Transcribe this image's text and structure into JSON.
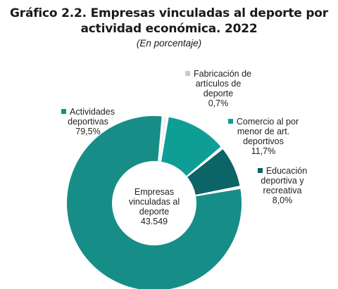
{
  "chart_data": {
    "type": "pie",
    "variant": "donut",
    "title": "Gráfico 2.2. Empresas vinculadas al deporte por actividad económica. 2022",
    "title_lines": [
      "Gráfico 2.2. Empresas vinculadas al deporte por",
      "actividad económica. 2022"
    ],
    "subtitle": "(En porcentaje)",
    "center_label_lines": [
      "Empresas",
      "vinculadas al",
      "deporte",
      "43.549"
    ],
    "slices": [
      {
        "name": "Actividades deportivas",
        "value": 79.5,
        "name_lines": [
          "Actividades",
          "deportivas"
        ],
        "value_label": "79,5%",
        "color": "#178d87"
      },
      {
        "name": "Fabricación de artículos de deporte",
        "value": 0.7,
        "name_lines": [
          "Fabricación de",
          "artículos de",
          "deporte"
        ],
        "value_label": "0,7%",
        "color": "#c8c8c8"
      },
      {
        "name": "Comercio al por menor de art. deportivos",
        "value": 11.7,
        "name_lines": [
          "Comercio al por",
          "menor de art.",
          "deportivos"
        ],
        "value_label": "11,7%",
        "color": "#0e9e96"
      },
      {
        "name": "Educación deportiva y recreativa",
        "value": 8.0,
        "name_lines": [
          "Educación",
          "deportiva y",
          "recreativa"
        ],
        "value_label": "8,0%",
        "color": "#0b6466"
      }
    ],
    "legend": "inline-labels"
  }
}
